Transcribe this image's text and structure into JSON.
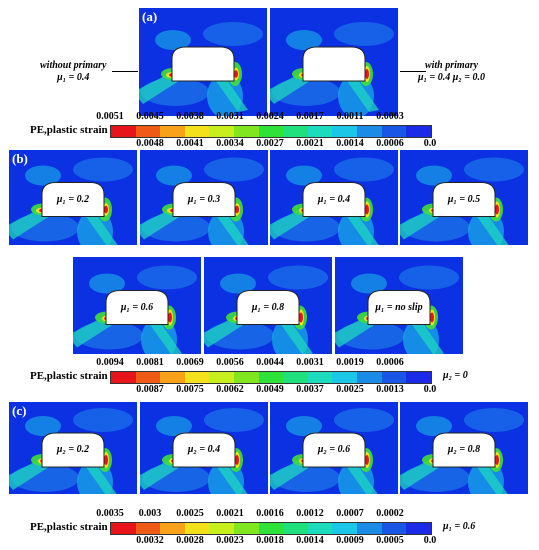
{
  "panels": {
    "a": {
      "label": "(a)"
    },
    "b": {
      "label": "(b)"
    },
    "c": {
      "label": "(c)"
    }
  },
  "notes": {
    "without_primary_l1": "without primary",
    "without_primary_l2": "μ₁ = 0.4",
    "with_primary_l1": "with primary",
    "with_primary_l2": "μ₁ = 0.4   μ₂ = 0.0"
  },
  "b_labels": [
    "μ₁ = 0.2",
    "μ₁ = 0.3",
    "μ₁ = 0.4",
    "μ₁ = 0.5",
    "μ₁ = 0.6",
    "μ₁ = 0.8",
    "μ₁ = no slip"
  ],
  "c_labels": [
    "μ₂ = 0.2",
    "μ₂ = 0.4",
    "μ₂ = 0.6",
    "μ₂ = 0.8"
  ],
  "legends": {
    "title": "PE,plastic strain",
    "a": {
      "top": [
        "0.0051",
        "0.0045",
        "0.0038",
        "0.0031",
        "0.0024",
        "0.0017",
        "0.0011",
        "0.0003"
      ],
      "bottom": [
        "0.0048",
        "0.0041",
        "0.0034",
        "0.0027",
        "0.0021",
        "0.0014",
        "0.0006",
        "0.0"
      ]
    },
    "b": {
      "top": [
        "0.0094",
        "0.0081",
        "0.0069",
        "0.0056",
        "0.0044",
        "0.0031",
        "0.0019",
        "0.0006"
      ],
      "bottom": [
        "0.0087",
        "0.0075",
        "0.0062",
        "0.0049",
        "0.0037",
        "0.0025",
        "0.0013",
        "0.0"
      ],
      "note": "μ₂ = 0"
    },
    "c": {
      "top": [
        "0.0035",
        "0.003",
        "0.0025",
        "0.0021",
        "0.0016",
        "0.0012",
        "0.0007",
        "0.0002"
      ],
      "bottom": [
        "0.0032",
        "0.0028",
        "0.0023",
        "0.0018",
        "0.0014",
        "0.0009",
        "0.0005",
        "0.0"
      ],
      "note": "μ₁ = 0.6"
    }
  },
  "colors": {
    "scale": [
      "#e8141b",
      "#f05a17",
      "#f7a21a",
      "#f2e11b",
      "#c7ee1d",
      "#7fe61f",
      "#2ee23a",
      "#1fe07d",
      "#1ddbbd",
      "#1bc6e6",
      "#1a8ce6",
      "#1a56e6",
      "#1a2ae6"
    ],
    "background": "#0a2fe0"
  }
}
